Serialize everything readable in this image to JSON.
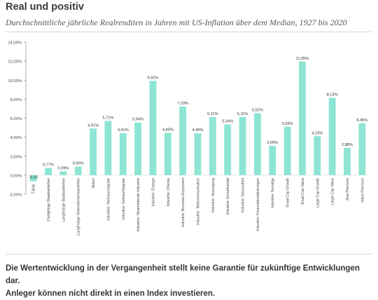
{
  "header": {
    "title": "Real und positiv",
    "subtitle": "Durchschnittliche jährliche Realrenditen in Jahren mit US-Inflation über dem Median, 1927 bis 2020"
  },
  "footer": {
    "line1": "Die Wertentwicklung in der Vergangenheit stellt keine Garantie für zukünftige Entwicklungen dar.",
    "line2": "Anleger können nicht direkt in einen Index investieren."
  },
  "colors": {
    "bar": "#8ee5d4",
    "gridline": "#e6e6e6",
    "axis": "#999999"
  },
  "chart_data": {
    "type": "bar",
    "categories": [
      "T-Bills",
      "Fünfjährige Staatsanleihen",
      "Langfristige Staatsanleihen",
      "Langfristige Unternehmensanleihen",
      "Aktien",
      "Industrie: Verbrauchsgüter",
      "Industrie: Gebrauchsgüter",
      "Industrie: Verarbeitende Industrie",
      "Industrie: Energie",
      "Industrie: Chemie",
      "Industrie: Business Equipment",
      "Industrie: Telekommunikation",
      "Industrie: Versorgung",
      "Industrie: Einzelhandel",
      "Industrie: Gesundheit",
      "Industrie: Finanzdienstleistungen",
      "Industrie: Sonstige",
      "Small Cap Growth",
      "Small Cap Value",
      "Large Cap Growth",
      "Large Cap Value",
      "Size Premium",
      "Value Premium"
    ],
    "values": [
      -0.64,
      0.77,
      0.39,
      0.9,
      4.91,
      5.71,
      4.41,
      5.54,
      9.92,
      4.46,
      7.23,
      4.4,
      6.11,
      5.34,
      6.11,
      6.52,
      3.09,
      5.09,
      11.95,
      4.1,
      8.13,
      2.88,
      5.45
    ],
    "value_labels": [
      "-0,64",
      "0,77%",
      "0,39%",
      "0,90%",
      "4,91%",
      "5,71%",
      "4,41%",
      "5,54%",
      "9,92%",
      "4,46%",
      "7,23%",
      "4,40%",
      "6,11%",
      "5,34%",
      "6,11%",
      "6,52%",
      "3,09%",
      "5,09%",
      "11,95%",
      "4,10%",
      "8,13%",
      "2,88%",
      "5,45%"
    ],
    "ylim": [
      -2,
      14
    ],
    "yticks": [
      -2,
      0,
      2,
      4,
      6,
      8,
      10,
      12,
      14
    ],
    "ytick_labels": [
      "-2,00%",
      "0,00%",
      "2,00%",
      "4,00%",
      "6,00%",
      "8,00%",
      "10,00%",
      "12,00%",
      "14,00%"
    ],
    "grid": false,
    "xlabel": "",
    "ylabel": ""
  }
}
